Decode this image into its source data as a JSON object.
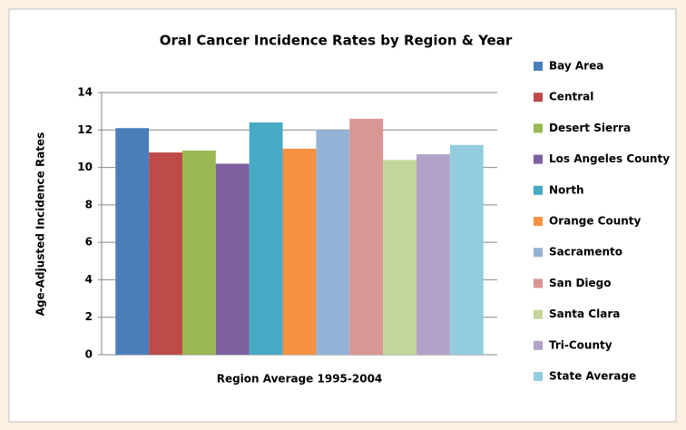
{
  "chart_data": {
    "type": "bar",
    "title": "Oral Cancer Incidence Rates by Region & Year",
    "categories": [
      "Region Average 1995-2004"
    ],
    "y_label": "Age-Adjusted Incidence Rates",
    "series": [
      {
        "name": "Bay Area",
        "color": "#4a7ebb",
        "values": [
          12.1
        ]
      },
      {
        "name": "Central",
        "color": "#be4b48",
        "values": [
          10.8
        ]
      },
      {
        "name": "Desert Sierra",
        "color": "#98b954",
        "values": [
          10.9
        ]
      },
      {
        "name": "Los Angeles County",
        "color": "#7d60a0",
        "values": [
          10.2
        ]
      },
      {
        "name": "North",
        "color": "#46aac5",
        "values": [
          12.4
        ]
      },
      {
        "name": "Orange County",
        "color": "#f69240",
        "values": [
          11.0
        ]
      },
      {
        "name": "Sacramento",
        "color": "#95b3d7",
        "values": [
          12.0
        ]
      },
      {
        "name": "San Diego",
        "color": "#d99694",
        "values": [
          12.6
        ]
      },
      {
        "name": "Santa Clara",
        "color": "#c3d69b",
        "values": [
          10.4
        ]
      },
      {
        "name": "Tri-County",
        "color": "#b2a2c7",
        "values": [
          10.7
        ]
      },
      {
        "name": "State Average",
        "color": "#93cddd",
        "values": [
          11.2
        ]
      }
    ],
    "ylim": [
      0,
      14
    ],
    "yticks": [
      0,
      2,
      4,
      6,
      8,
      10,
      12,
      14
    ],
    "grid": true,
    "legend": "right"
  }
}
